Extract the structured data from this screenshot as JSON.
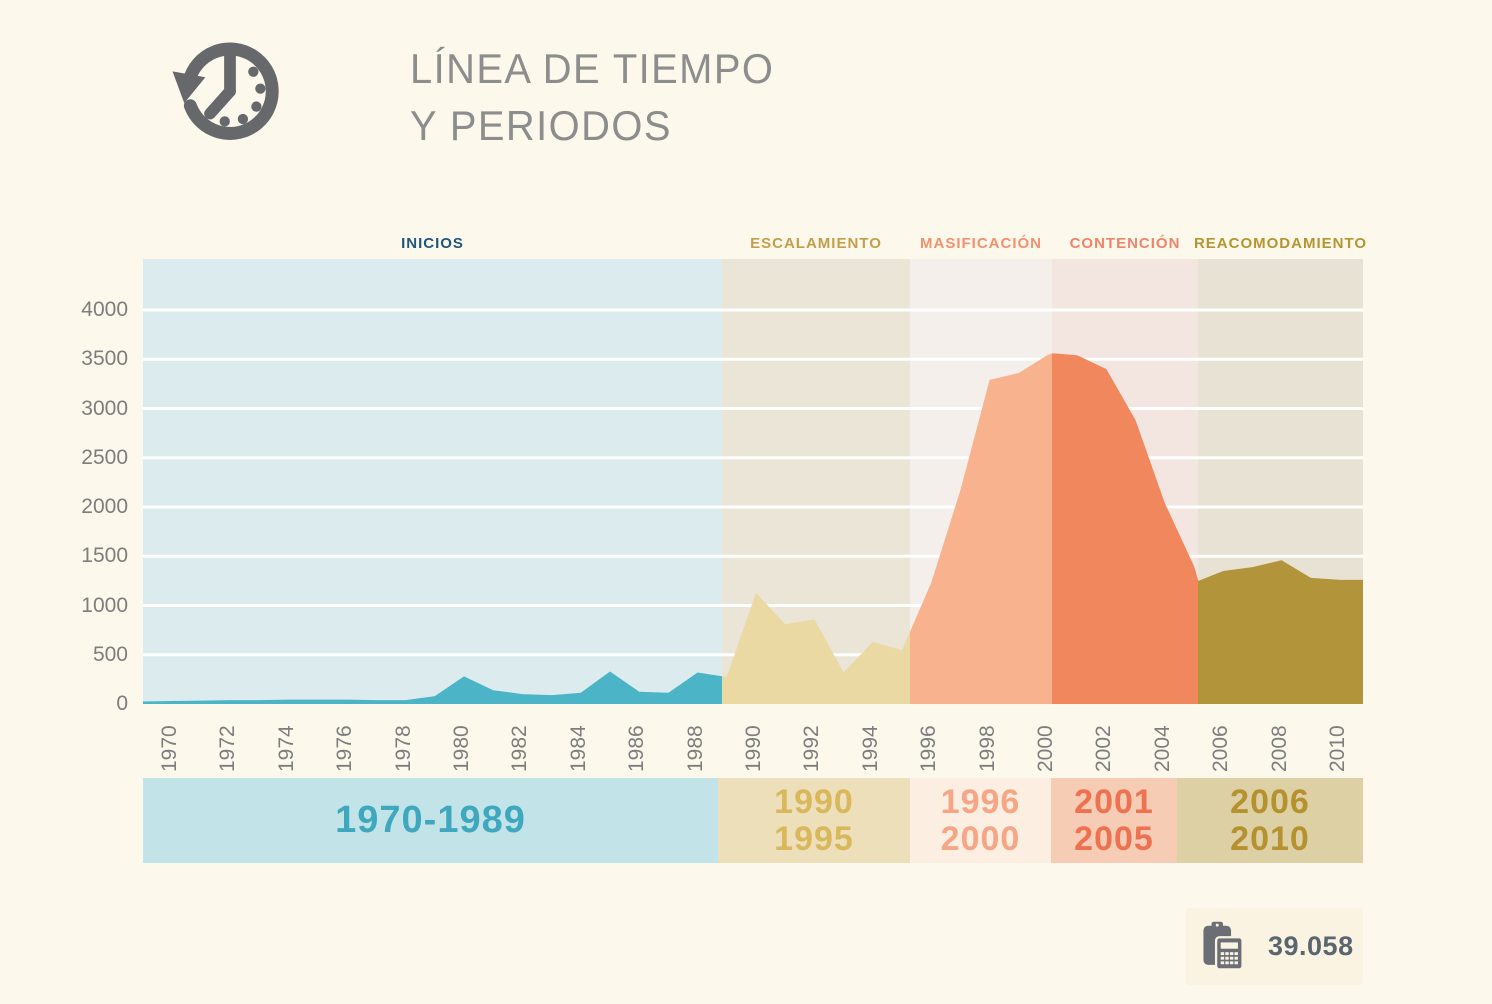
{
  "page": {
    "background": "#fdf8ec"
  },
  "header": {
    "title_lines": [
      "LÍNEA DE TIEMPO",
      "Y PERIODOS"
    ],
    "title_color": "#8d8d8d",
    "icon": "clock-history-icon"
  },
  "stat": {
    "value": "39.058",
    "icon": "calculator-clipboard-icon"
  },
  "chart_data": {
    "type": "area",
    "title": "LÍNEA DE TIEMPO Y PERIODOS",
    "xlabel": "",
    "ylabel": "",
    "ylim": [
      0,
      4400
    ],
    "grid": true,
    "gridline_color": "#ffffff",
    "tick_color": "#7d7d7d",
    "yticks": [
      0,
      500,
      1000,
      1500,
      2000,
      2500,
      3000,
      3500,
      4000
    ],
    "xticks": [
      1970,
      1972,
      1974,
      1976,
      1978,
      1980,
      1982,
      1984,
      1986,
      1988,
      1990,
      1992,
      1994,
      1996,
      1998,
      2000,
      2002,
      2004,
      2006,
      2008,
      2010
    ],
    "x": [
      1969,
      1970,
      1971,
      1972,
      1973,
      1974,
      1975,
      1976,
      1977,
      1978,
      1979,
      1980,
      1981,
      1982,
      1983,
      1984,
      1985,
      1986,
      1987,
      1988,
      1989,
      1990,
      1991,
      1992,
      1993,
      1994,
      1995,
      1996,
      1997,
      1998,
      1999,
      2000,
      2000.15,
      2001,
      2002,
      2003,
      2004,
      2005,
      2005.15,
      2006,
      2007,
      2008,
      2009,
      2010,
      2010.8
    ],
    "values": [
      25,
      30,
      35,
      40,
      40,
      45,
      45,
      45,
      40,
      40,
      80,
      280,
      140,
      100,
      90,
      115,
      330,
      125,
      115,
      320,
      275,
      1130,
      810,
      860,
      320,
      630,
      545,
      1230,
      2170,
      3290,
      3360,
      3545,
      3560,
      3540,
      3400,
      2880,
      2040,
      1400,
      1250,
      1350,
      1390,
      1460,
      1280,
      1260,
      1260
    ],
    "periods": [
      {
        "name": "INICIOS",
        "range_label_lines": [
          "1970-1989"
        ],
        "start_year": 1970,
        "end_year": 1989,
        "label_color": "#1e567e",
        "band_bg": "#dcebee",
        "area_fill": "#4cb4c7",
        "footer_bg": "#c2e4e9",
        "footer_text_color": "#3fa8bf"
      },
      {
        "name": "ESCALAMIENTO",
        "range_label_lines": [
          "1990",
          "1995"
        ],
        "start_year": 1990,
        "end_year": 1995,
        "label_color": "#c2a04a",
        "band_bg": "#eae5d6",
        "area_fill": "#ead9a2",
        "footer_bg": "#ecdfba",
        "footer_text_color": "#d9b85c"
      },
      {
        "name": "MASIFICACIÓN",
        "range_label_lines": [
          "1996",
          "2000"
        ],
        "start_year": 1996,
        "end_year": 2000,
        "label_color": "#f2916d",
        "band_bg": "#f5efec",
        "area_fill": "#f8b28d",
        "footer_bg": "#fdeee2",
        "footer_text_color": "#f6a585"
      },
      {
        "name": "CONTENCIÓN",
        "range_label_lines": [
          "2001",
          "2005"
        ],
        "start_year": 2001,
        "end_year": 2005,
        "label_color": "#ef8468",
        "band_bg": "#f3e5df",
        "area_fill": "#f0875d",
        "footer_bg": "#f6ccb4",
        "footer_text_color": "#ee7150"
      },
      {
        "name": "REACOMODAMIENTO",
        "range_label_lines": [
          "2006",
          "2010"
        ],
        "start_year": 2006,
        "end_year": 2010,
        "label_color": "#b5952f",
        "band_bg": "#e8e2d5",
        "area_fill": "#b2943a",
        "footer_bg": "#ddd0a4",
        "footer_text_color": "#b5922f"
      }
    ]
  }
}
